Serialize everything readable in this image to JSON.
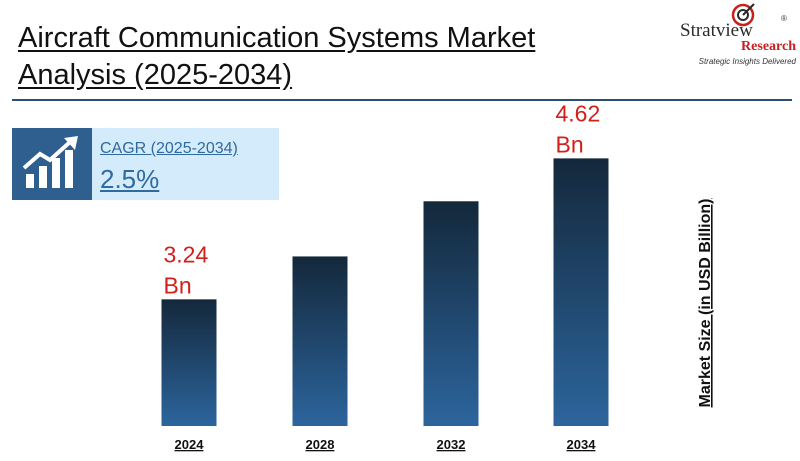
{
  "header": {
    "title_line1": "Aircraft Communication Systems Market",
    "title_line2": "Analysis (2025-2034)"
  },
  "logo": {
    "brand": "Stratview",
    "registered": "®",
    "sub": "Research",
    "tagline": "Strategic Insights Delivered"
  },
  "cagr": {
    "label": "CAGR (2025-2034)",
    "value": "2.5%",
    "icon": "growth-chart-icon"
  },
  "colors": {
    "bar_top": "#14283b",
    "bar_bottom": "#2c659d",
    "label_red": "#d0201c",
    "accent_blue": "#2f6aa0"
  },
  "chart_data": {
    "type": "bar",
    "categories": [
      "2024",
      "2028",
      "2032",
      "2034"
    ],
    "values": [
      3.24,
      3.66,
      4.2,
      4.62
    ],
    "data_labels": [
      {
        "index": 0,
        "line1": "3.24",
        "line2": "Bn"
      },
      {
        "index": 3,
        "line1": "4.62",
        "line2": "Bn"
      }
    ],
    "title": "",
    "xlabel": "",
    "ylabel": "Market Size (in  USD Billion)",
    "ylim": [
      2.0,
      4.8
    ],
    "grid": false,
    "legend": "none"
  }
}
